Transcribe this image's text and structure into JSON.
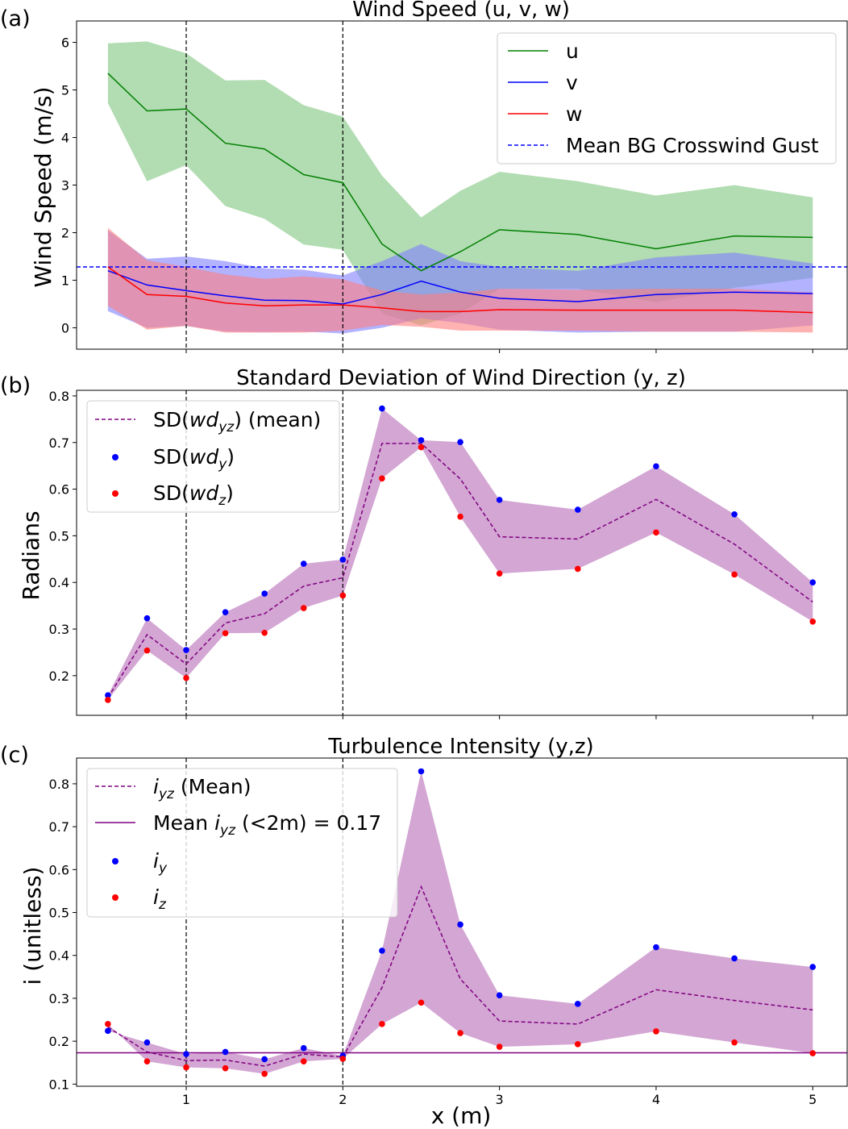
{
  "figure": {
    "xlabel": "x (m)",
    "x_ticks": [
      1,
      2,
      3,
      4,
      5
    ],
    "vlines": [
      1,
      2
    ]
  },
  "chart_data": [
    {
      "panel_label": "(a)",
      "type": "line",
      "title": "Wind Speed (u, v, w)",
      "xlabel": "",
      "ylabel": "Wind Speed (m/s)",
      "xlim": [
        0.3,
        5.22
      ],
      "ylim": [
        -0.45,
        6.45
      ],
      "y_ticks": [
        0,
        1,
        2,
        3,
        4,
        5,
        6
      ],
      "x": [
        0.5,
        0.75,
        1.0,
        1.25,
        1.5,
        1.75,
        2.0,
        2.25,
        2.5,
        2.75,
        3.0,
        3.5,
        4.0,
        4.5,
        5.0
      ],
      "series": [
        {
          "name": "u",
          "color": "#008000",
          "values": [
            5.35,
            4.56,
            4.6,
            3.88,
            3.76,
            3.22,
            3.05,
            1.76,
            1.2,
            1.6,
            2.06,
            1.96,
            1.66,
            1.93,
            1.9
          ],
          "upper": [
            5.98,
            6.02,
            5.77,
            5.2,
            5.21,
            4.68,
            4.44,
            3.2,
            2.32,
            2.88,
            3.28,
            3.08,
            2.78,
            3.0,
            2.74
          ],
          "lower": [
            4.72,
            3.08,
            3.42,
            2.56,
            2.29,
            1.75,
            1.64,
            0.3,
            0.05,
            0.3,
            0.82,
            0.82,
            0.54,
            0.84,
            1.05
          ],
          "band_color": "#7fc47f"
        },
        {
          "name": "v",
          "color": "#0000ff",
          "values": [
            1.2,
            0.9,
            0.78,
            0.67,
            0.58,
            0.57,
            0.5,
            0.7,
            0.98,
            0.75,
            0.62,
            0.55,
            0.7,
            0.75,
            0.72
          ],
          "upper": [
            2.05,
            1.45,
            1.5,
            1.4,
            1.25,
            1.22,
            1.1,
            1.4,
            1.76,
            1.4,
            1.28,
            1.2,
            1.48,
            1.58,
            1.35
          ],
          "lower": [
            0.35,
            0.0,
            0.04,
            -0.08,
            -0.09,
            -0.08,
            -0.12,
            0.0,
            0.2,
            0.1,
            -0.04,
            -0.1,
            -0.08,
            -0.08,
            0.05
          ],
          "band_color": "#7f7fff"
        },
        {
          "name": "w",
          "color": "#ff0000",
          "values": [
            1.28,
            0.7,
            0.66,
            0.52,
            0.46,
            0.48,
            0.48,
            0.42,
            0.34,
            0.34,
            0.38,
            0.37,
            0.37,
            0.37,
            0.32
          ],
          "upper": [
            2.1,
            1.42,
            1.28,
            1.12,
            1.03,
            1.08,
            1.02,
            0.78,
            0.7,
            0.74,
            0.82,
            0.8,
            0.82,
            0.82,
            0.74
          ],
          "lower": [
            0.46,
            -0.04,
            0.04,
            -0.1,
            -0.1,
            -0.1,
            -0.06,
            0.06,
            0.02,
            -0.06,
            -0.06,
            -0.06,
            -0.08,
            -0.08,
            -0.1
          ],
          "band_color": "#ff7f7f"
        }
      ],
      "hline": {
        "name": "Mean BG Crosswind Gust",
        "value": 1.28,
        "color": "#0000ff",
        "style": "dashed"
      },
      "legend": [
        "u",
        "v",
        "w",
        "Mean BG Crosswind Gust"
      ],
      "legend_position": "top-right"
    },
    {
      "panel_label": "(b)",
      "type": "line",
      "title": "Standard Deviation of Wind Direction (y, z)",
      "xlabel": "",
      "ylabel": "Radians",
      "xlim": [
        0.3,
        5.22
      ],
      "ylim": [
        0.115,
        0.812
      ],
      "y_ticks": [
        0.2,
        0.3,
        0.4,
        0.5,
        0.6,
        0.7,
        0.8
      ],
      "x": [
        0.5,
        0.75,
        1.0,
        1.25,
        1.5,
        1.75,
        2.0,
        2.25,
        2.5,
        2.75,
        3.0,
        3.5,
        4.0,
        4.5,
        5.0
      ],
      "series": [
        {
          "name": "SD(wd_yz) (mean)",
          "color": "#800080",
          "style": "dashed",
          "values": [
            0.153,
            0.288,
            0.225,
            0.313,
            0.333,
            0.392,
            0.41,
            0.698,
            0.698,
            0.622,
            0.498,
            0.493,
            0.578,
            0.482,
            0.358
          ]
        },
        {
          "name": "SD(wd_y)",
          "color": "#0000ff",
          "style": "points",
          "values": [
            0.158,
            0.323,
            0.255,
            0.336,
            0.376,
            0.44,
            0.449,
            0.773,
            0.705,
            0.701,
            0.577,
            0.556,
            0.649,
            0.546,
            0.4
          ]
        },
        {
          "name": "SD(wd_z)",
          "color": "#ff0000",
          "style": "points",
          "values": [
            0.148,
            0.254,
            0.195,
            0.291,
            0.292,
            0.345,
            0.372,
            0.623,
            0.69,
            0.541,
            0.419,
            0.429,
            0.507,
            0.417,
            0.316
          ]
        }
      ],
      "band": {
        "upper_series": "SD(wd_y)",
        "lower_series": "SD(wd_z)",
        "color": "#c080c0"
      },
      "legend_position": "top-left"
    },
    {
      "panel_label": "(c)",
      "type": "line",
      "title": "Turbulence Intensity (y,z)",
      "xlabel": "x (m)",
      "ylabel": "i (unitless)",
      "xlim": [
        0.3,
        5.22
      ],
      "ylim": [
        0.095,
        0.86
      ],
      "y_ticks": [
        0.1,
        0.2,
        0.3,
        0.4,
        0.5,
        0.6,
        0.7,
        0.8
      ],
      "x": [
        0.5,
        0.75,
        1.0,
        1.25,
        1.5,
        1.75,
        2.0,
        2.25,
        2.5,
        2.75,
        3.0,
        3.5,
        4.0,
        4.5,
        5.0
      ],
      "series": [
        {
          "name": "i_yz (Mean)",
          "color": "#800080",
          "style": "dashed",
          "values": [
            0.233,
            0.175,
            0.155,
            0.156,
            0.142,
            0.17,
            0.163,
            0.325,
            0.56,
            0.345,
            0.247,
            0.24,
            0.32,
            0.295,
            0.273
          ]
        },
        {
          "name": "i_y",
          "color": "#0000ff",
          "style": "points",
          "values": [
            0.224,
            0.197,
            0.17,
            0.175,
            0.158,
            0.184,
            0.166,
            0.411,
            0.829,
            0.472,
            0.307,
            0.287,
            0.419,
            0.393,
            0.373
          ]
        },
        {
          "name": "i_z",
          "color": "#ff0000",
          "style": "points",
          "values": [
            0.24,
            0.153,
            0.139,
            0.137,
            0.124,
            0.153,
            0.159,
            0.24,
            0.29,
            0.219,
            0.187,
            0.193,
            0.223,
            0.197,
            0.172
          ]
        }
      ],
      "hline": {
        "name": "Mean i_yz (<2m) = 0.17",
        "value": 0.173,
        "color": "#800080",
        "style": "solid"
      },
      "band": {
        "upper_series": "i_y",
        "lower_series": "i_z",
        "color": "#c080c0"
      },
      "legend_position": "top-left"
    }
  ]
}
